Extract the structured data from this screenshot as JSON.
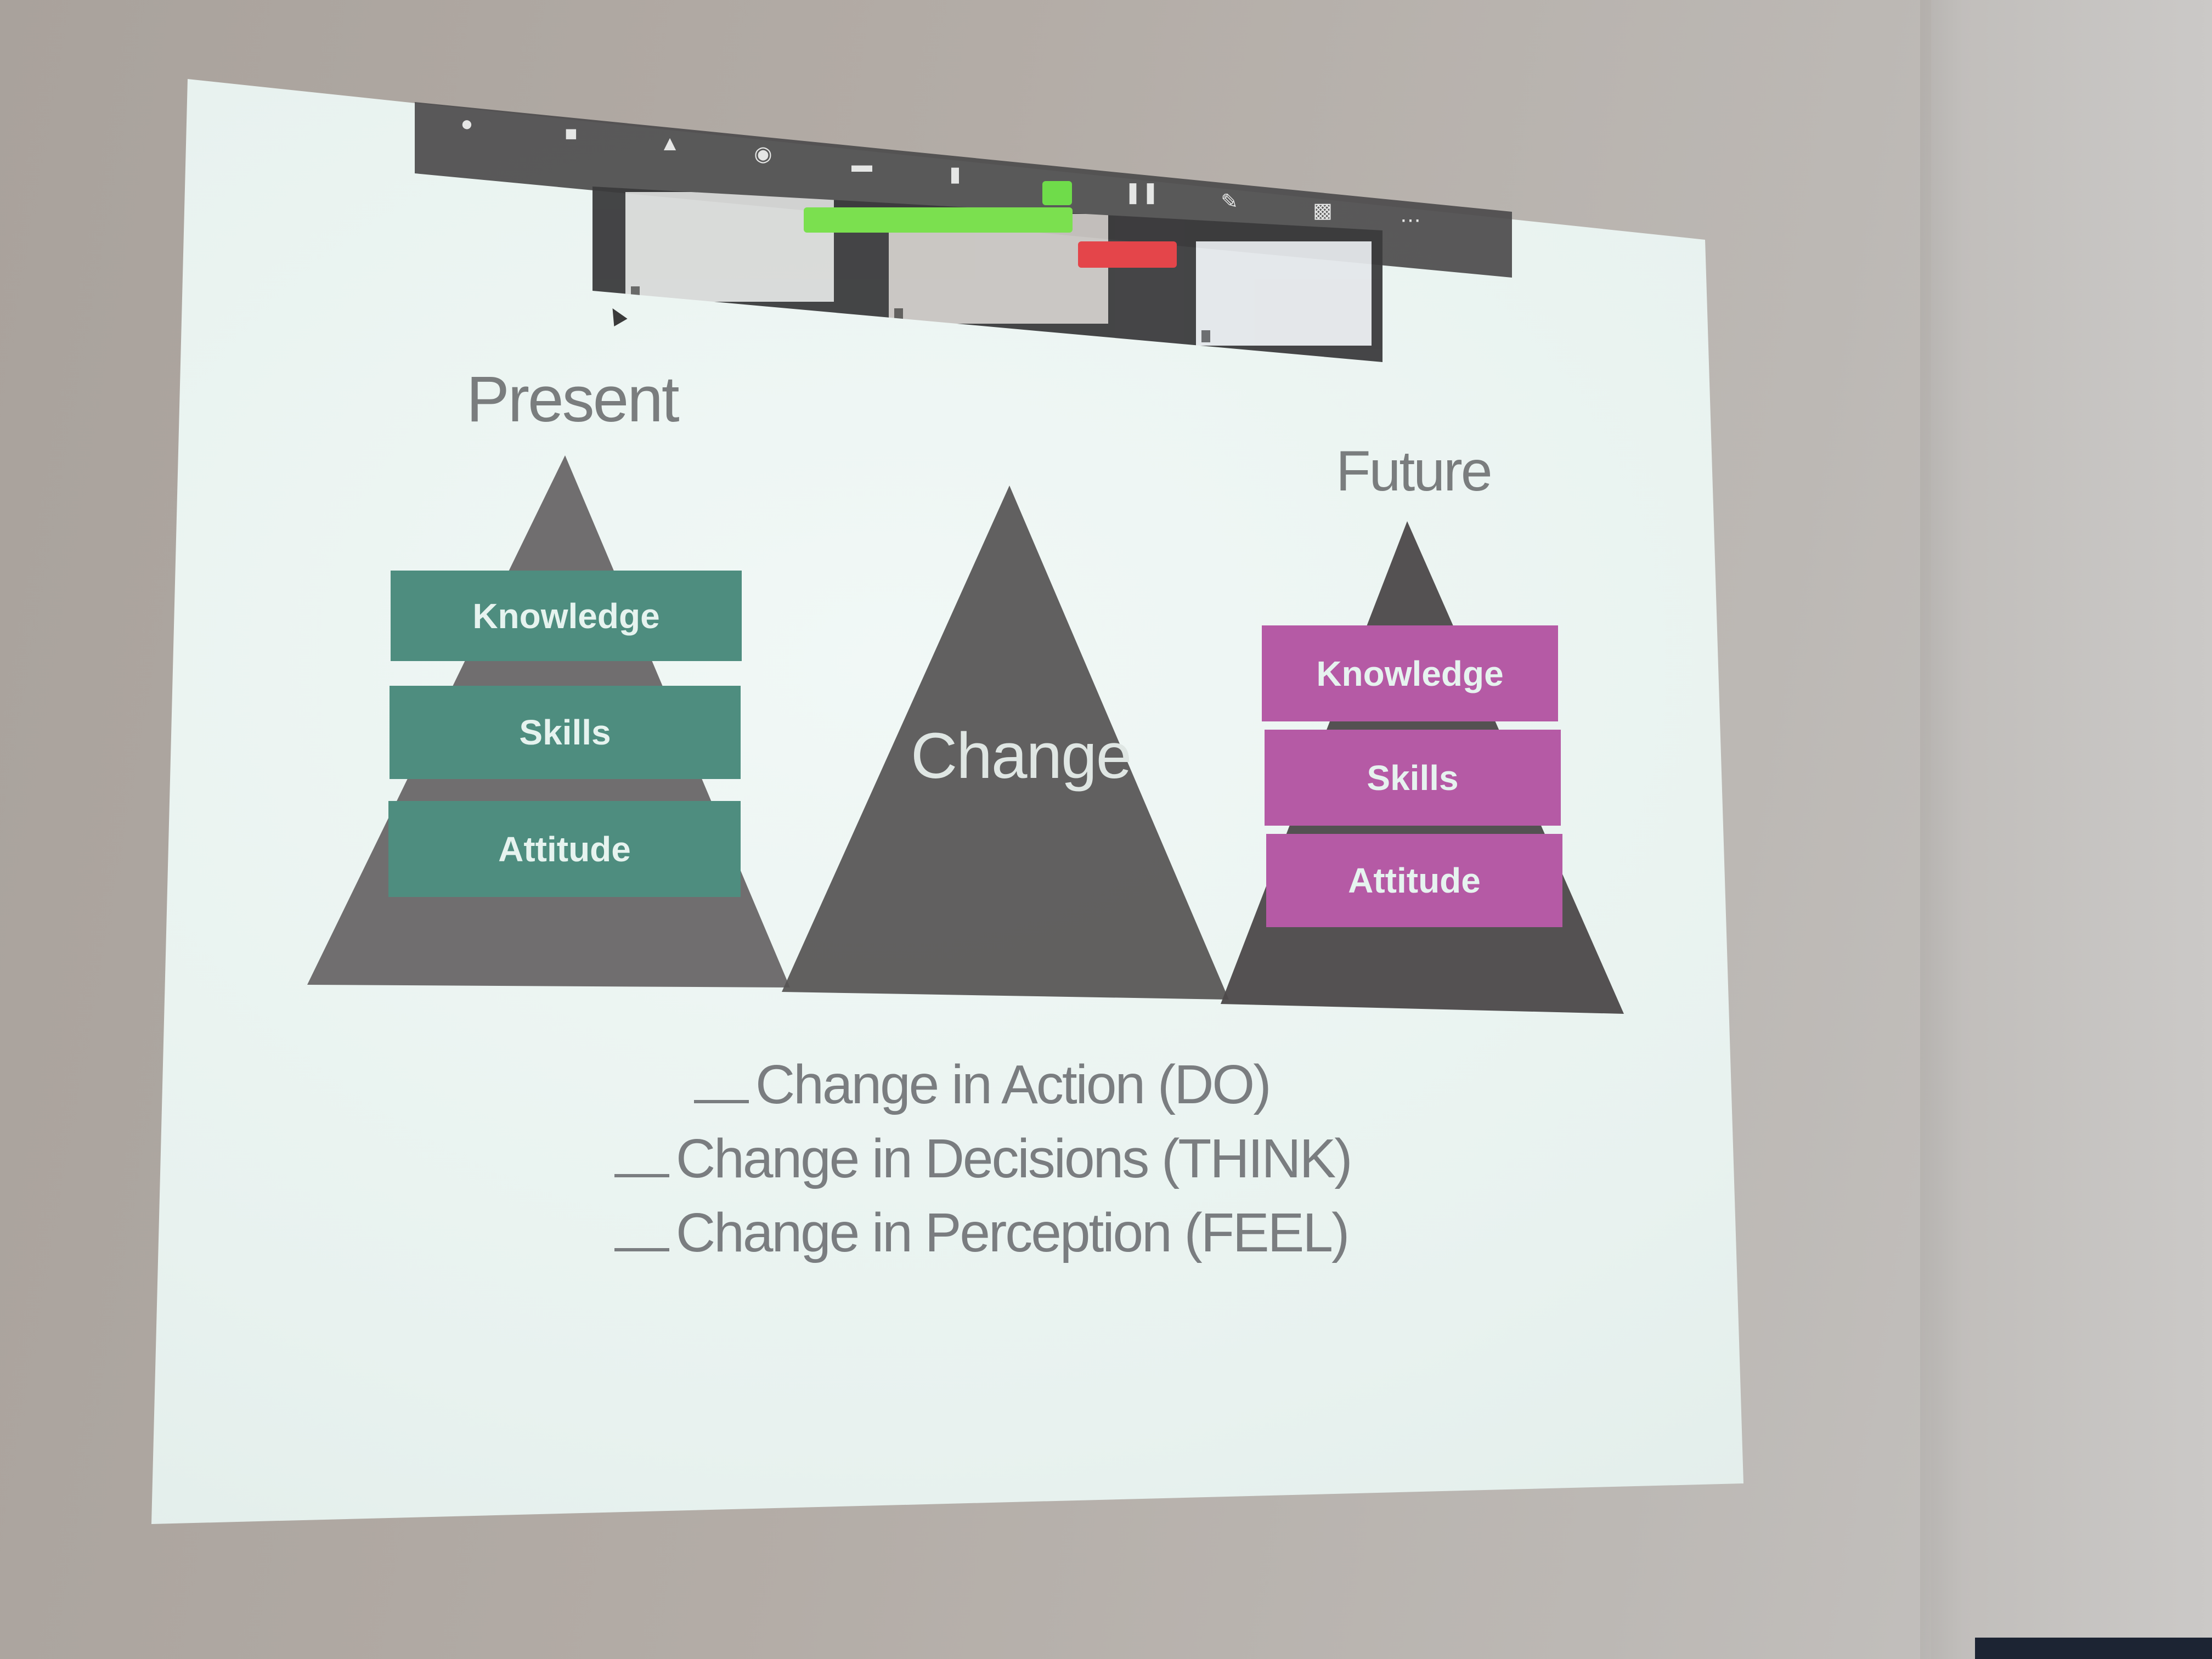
{
  "slide": {
    "present_heading": "Present",
    "future_heading": "Future",
    "change_label": "Change",
    "present_layers": [
      "Knowledge",
      "Skills",
      "Attitude"
    ],
    "future_layers": [
      "Knowledge",
      "Skills",
      "Attitude"
    ],
    "checklist": [
      "Change in Action (DO)",
      "Change in Decisions (THINK)",
      "Change in Perception (FEEL)"
    ]
  },
  "colors": {
    "present_band": "#4e8d7f",
    "future_band": "#b55aa5",
    "pyramid": "#5b5859",
    "screen": "#eaf3f0"
  },
  "zoom": {
    "toolbar_icons": [
      "microphone-icon",
      "video-icon",
      "security-icon",
      "participants-icon",
      "chat-icon",
      "polls-icon",
      "new-share-icon",
      "pause-share-icon",
      "annotate-icon",
      "remote-control-icon",
      "more-icon"
    ]
  }
}
